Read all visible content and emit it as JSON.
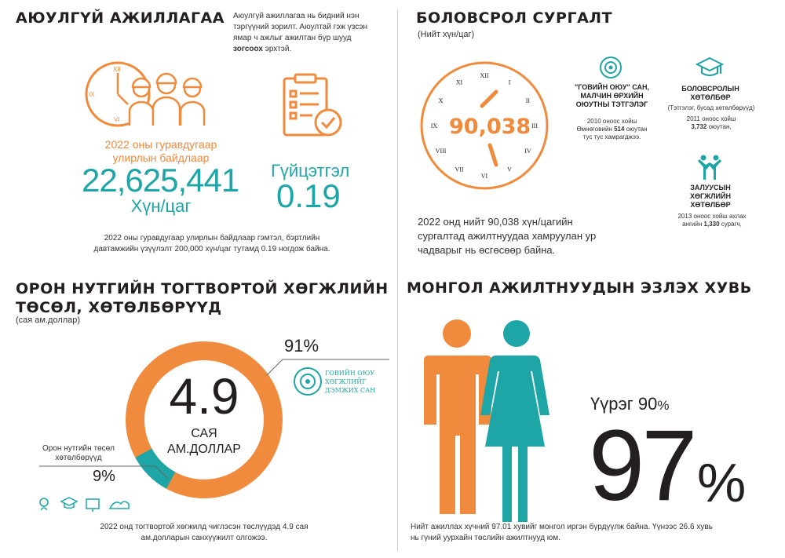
{
  "colors": {
    "orange": "#f08a3c",
    "teal": "#1ea6a6",
    "dark": "#231f20"
  },
  "safety": {
    "title": "АЮУЛГҮЙ АЖИЛЛАГАА",
    "intro_line1": "Аюулгүй ажиллагаа нь бидний нэн",
    "intro_line2": "тэргүүний зорилт. Аюултай гэж үзсэн",
    "intro_line3": "ямар ч ажлыг ажилтан бүр шууд",
    "intro_bold": "зогсоох",
    "intro_end": " эрхтэй.",
    "clock_numerals": {
      "xii": "XII",
      "ix": "IX",
      "vi": "VI"
    },
    "period_line1": "2022 оны гуравдугаар",
    "period_line2": "улирлын байдлаар",
    "hours_value": "22,625,441",
    "hours_unit": "Хүн/цаг",
    "performance_label": "Гүйцэтгэл",
    "performance_value": "0.19",
    "note_line1": "2022 оны гуравдугаар улирлын байдлаар гэмтэл, бэртлийн",
    "note_line2": "давтамжийн үзүүлэлт 200,000 хүн/цаг тутамд 0.19 ногдож байна."
  },
  "training": {
    "title": "БОЛОВСРОЛ СУРГАЛТ",
    "subtitle": "(Нийт хүн/цаг)",
    "clock_value": "90,038",
    "numerals": [
      "XII",
      "I",
      "II",
      "III",
      "IV",
      "V",
      "VI",
      "VII",
      "VIII",
      "IX",
      "X",
      "XI"
    ],
    "desc_line1": "2022 онд нийт 90,038 хүн/цагийн",
    "desc_line2": "сургалтад ажилтнуудаа хамруулан ур",
    "desc_line3": "чадварыг нь өсгөсөөр байна.",
    "fund": {
      "title_line1": "\"ГОВИЙН ОЮУ\" САН,",
      "title_line2": "МАЛЧИН ӨРХИЙН",
      "title_line3": "ОЮУТНЫ ТЭТГЭЛЭГ",
      "text_line1": "2010 оноос хойш",
      "text_line2_a": "Өмнөговийн ",
      "text_line2_b": "514",
      "text_line2_c": " оюутан",
      "text_line3": "тус тус хамрагджээ."
    },
    "education": {
      "title_line1": "БОЛОВСРОЛЫН",
      "title_line2": "ХӨТӨЛБӨР",
      "paren": "(Тэтгэлэг, бусад хөтөлбөрүүд)",
      "text_line1": "2011 оноос хойш",
      "text_line2_a": "3,732",
      "text_line2_b": " оюутан,"
    },
    "youth": {
      "title_line1": "ЗАЛУУСЫН",
      "title_line2": "ХӨГЖЛИЙН",
      "title_line3": "ХӨТӨЛБӨР",
      "text_line1": "2013 оноос хойш ахлах",
      "text_line2_a": "ангийн ",
      "text_line2_b": "1,330",
      "text_line2_c": " сурагч,"
    }
  },
  "projects": {
    "title_line1": "ОРОН НУТГИЙН ТОГТВОРТОЙ ХӨГЖЛИЙН",
    "title_line2": "ТӨСӨЛ, ХӨТӨЛБӨРҮҮД",
    "subtitle": "(сая ам.доллар)",
    "big_value": "4.9",
    "unit_line1": "САЯ",
    "unit_line2": "АМ.ДОЛЛАР",
    "major_pct": "91%",
    "minor_label_line1": "Орон нутгийн төсөл",
    "minor_label_line2": "хөтөлбөрүүд",
    "minor_pct": "9%",
    "fund_logo_line1": "ГОВИЙН ОЮУ",
    "fund_logo_line2": "ХӨГЖЛИЙГ",
    "fund_logo_line3": "ДЭМЖИХ САН",
    "note_line1": "2022 онд тогтвортой хөгжилд чиглэсэн төслүүдэд 4.9 сая",
    "note_line2": "ам.долларын санхүүжилт олгожээ."
  },
  "workforce": {
    "title": "МОНГОЛ АЖИЛТНУУДЫН ЭЗЛЭХ ХУВЬ",
    "local_label": "Үүрэг 90",
    "local_pct_sign": "%",
    "big_value": "97",
    "big_pct_sign": "%",
    "note_line1": "Нийт ажиллах хүчний 97.01 хувийг монгол иргэн бүрдүүлж байна. Үүнээс 26.6 хувь",
    "note_line2": "нь гүний уурхайн төслийн ажилтнууд юм."
  }
}
